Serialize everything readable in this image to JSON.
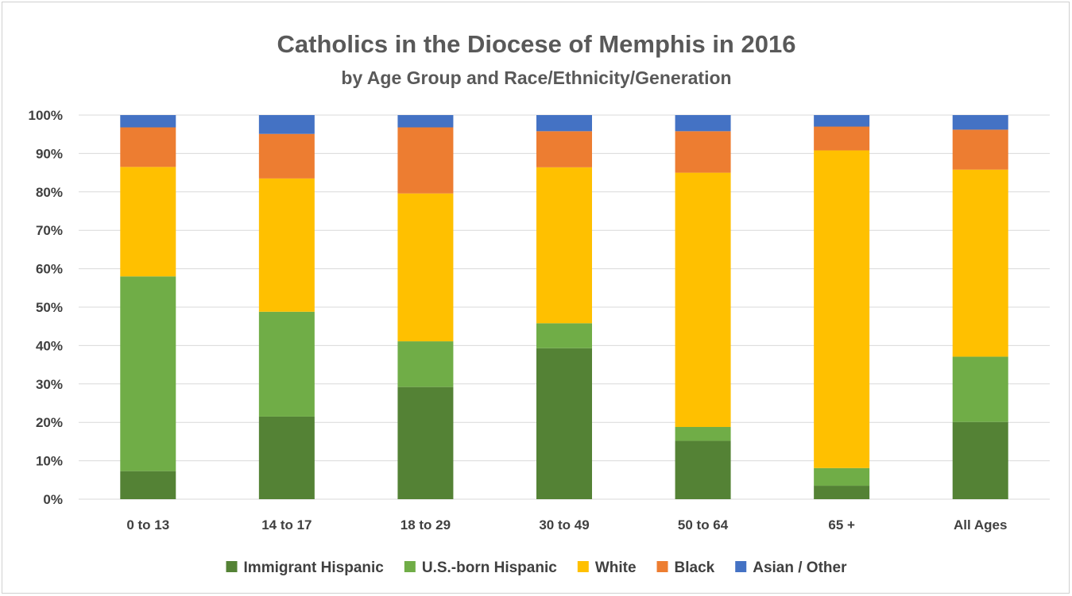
{
  "chart_data": {
    "type": "bar",
    "stacked": true,
    "percent": true,
    "title": "Catholics in the Diocese of Memphis in 2016",
    "subtitle": "by Age Group and Race/Ethnicity/Generation",
    "categories": [
      "0 to 13",
      "14 to 17",
      "18 to 29",
      "30 to 49",
      "50 to 64",
      "65 +",
      "All Ages"
    ],
    "series": [
      {
        "name": "Immigrant Hispanic",
        "color": "#548235",
        "values": [
          7.3,
          21.5,
          29.2,
          39.3,
          15.2,
          3.5,
          20.1
        ]
      },
      {
        "name": "U.S.-born Hispanic",
        "color": "#70AD47",
        "values": [
          50.7,
          27.3,
          11.9,
          6.5,
          3.6,
          4.6,
          17.0
        ]
      },
      {
        "name": "White",
        "color": "#FFC000",
        "values": [
          28.5,
          34.7,
          38.5,
          40.6,
          66.2,
          82.7,
          48.7
        ]
      },
      {
        "name": "Black",
        "color": "#ED7D31",
        "values": [
          10.3,
          11.6,
          17.2,
          9.4,
          10.8,
          6.2,
          10.4
        ]
      },
      {
        "name": "Asian / Other",
        "color": "#4472C4",
        "values": [
          3.2,
          4.9,
          3.2,
          4.2,
          4.2,
          3.0,
          3.8
        ]
      }
    ],
    "yticks": [
      "0%",
      "10%",
      "20%",
      "30%",
      "40%",
      "50%",
      "60%",
      "70%",
      "80%",
      "90%",
      "100%"
    ],
    "ylim": [
      0,
      100
    ],
    "grid": true,
    "legend_position": "bottom"
  }
}
